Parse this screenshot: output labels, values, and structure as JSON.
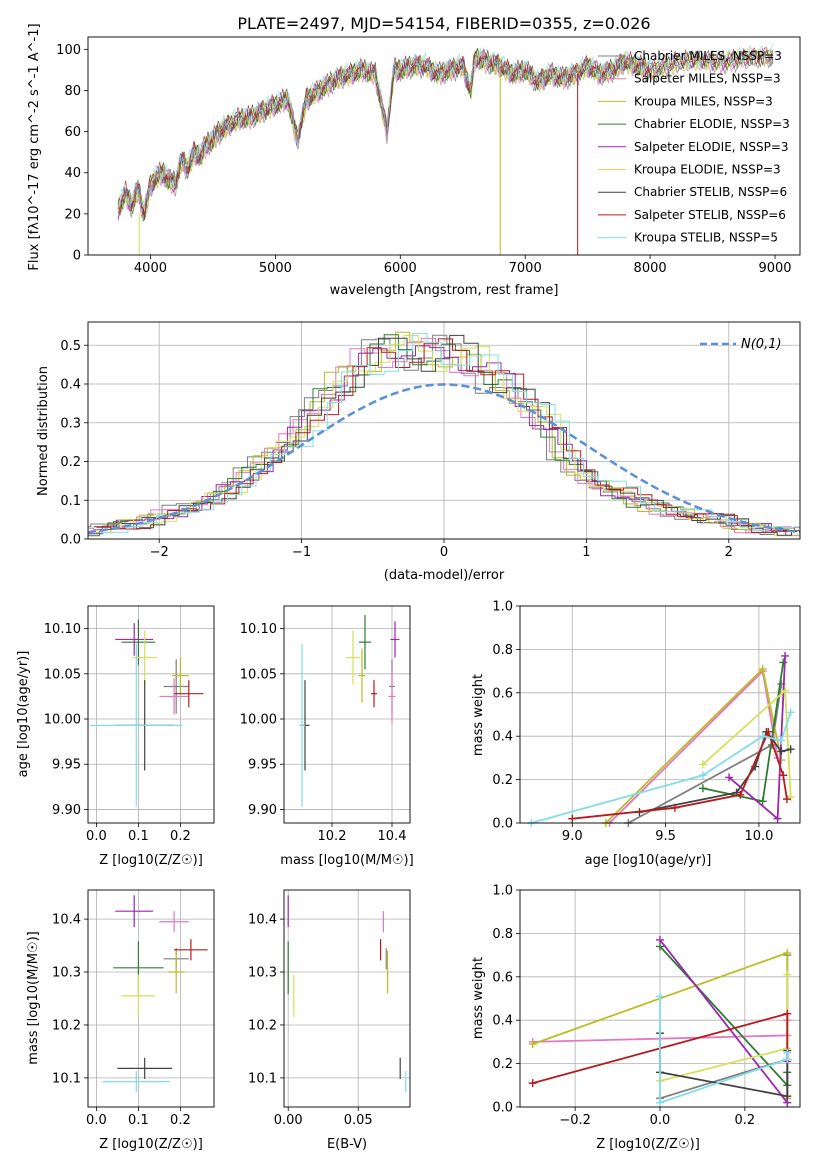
{
  "title": "PLATE=2497, MJD=54154, FIBERID=0355, z=0.026",
  "colors": {
    "grid": "#b0b0b0",
    "normal_curve": "#5b8fd6"
  },
  "labels": {
    "p1_xlabel": "wavelength [Angstrom, rest frame]",
    "p2_ylabel": "Normed distribution",
    "p2_xlabel": "(data-model)/error",
    "p2_legend": "N(0,1)",
    "p3_ylabel": "age  [log10(age/yr)]",
    "p3_xlabel": "Z [log10(Z/Z☉)]",
    "p4_xlabel": "mass [log10(M/M☉)]",
    "p5_ylabel": "mass weight",
    "p5_xlabel": "age  [log10(age/yr)]",
    "p6_ylabel": "mass [log10(M/M☉)]",
    "p6_xlabel": "Z [log10(Z/Z☉)]",
    "p7_xlabel": "E(B-V)",
    "p8_ylabel": "mass weight",
    "p8_xlabel": "Z [log10(Z/Z☉)]"
  },
  "chart_data": {
    "models": [
      {
        "name": "Chabrier MILES, NSSP=3",
        "color": "#7f7f7f"
      },
      {
        "name": "Salpeter MILES, NSSP=3",
        "color": "#e377c2"
      },
      {
        "name": "Kroupa MILES, NSSP=3",
        "color": "#bcbd22"
      },
      {
        "name": "Chabrier ELODIE, NSSP=3",
        "color": "#2e7d32"
      },
      {
        "name": "Salpeter ELODIE, NSSP=3",
        "color": "#9c27b0"
      },
      {
        "name": "Kroupa ELODIE, NSSP=3",
        "color": "#d4e157"
      },
      {
        "name": "Chabrier STELIB, NSSP=6",
        "color": "#424242"
      },
      {
        "name": "Salpeter STELIB, NSSP=6",
        "color": "#b71c1c"
      },
      {
        "name": "Kroupa STELIB, NSSP=5",
        "color": "#80deea"
      }
    ],
    "spectrum": {
      "type": "line",
      "xlim": [
        3500,
        9200
      ],
      "ylim": [
        0,
        106
      ],
      "xticks": [
        4000,
        5000,
        6000,
        7000,
        8000,
        9000
      ],
      "yticks": [
        0,
        20,
        40,
        60,
        80,
        100
      ],
      "ylabel": "Flux [fλ10^-17 erg cm^-2 s^-1 A^-1]",
      "wavelength": [
        3740,
        3800,
        3850,
        3900,
        3950,
        4000,
        4050,
        4100,
        4150,
        4200,
        4250,
        4300,
        4350,
        4400,
        4450,
        4500,
        4550,
        4600,
        4700,
        4800,
        4900,
        5000,
        5100,
        5175,
        5250,
        5300,
        5400,
        5500,
        5600,
        5700,
        5800,
        5893,
        5950,
        6000,
        6100,
        6200,
        6300,
        6400,
        6500,
        6563,
        6600,
        6700,
        6800,
        6900,
        7000,
        7100,
        7200,
        7300,
        7400,
        7500,
        7600,
        7700,
        7800,
        7900,
        8000,
        8200,
        8400,
        8600,
        8800,
        9000
      ],
      "flux": [
        22,
        30,
        24,
        32,
        20,
        34,
        38,
        40,
        36,
        35,
        46,
        42,
        50,
        48,
        54,
        56,
        60,
        62,
        66,
        67,
        70,
        73,
        76,
        56,
        76,
        78,
        82,
        86,
        88,
        90,
        88,
        60,
        90,
        90,
        92,
        92,
        88,
        90,
        92,
        80,
        96,
        94,
        92,
        88,
        90,
        84,
        88,
        86,
        88,
        92,
        88,
        90,
        94,
        92,
        90,
        93,
        95,
        94,
        96,
        97
      ]
    },
    "histogram": {
      "type": "bar",
      "xlim": [
        -2.5,
        2.5
      ],
      "ylim": [
        0,
        0.56
      ],
      "xticks": [
        -2,
        -1,
        0,
        1,
        2
      ],
      "yticks": [
        0.0,
        0.1,
        0.2,
        0.3,
        0.4,
        0.5
      ],
      "bin_width": 0.1,
      "bin_centers": [
        -2.45,
        -2.35,
        -2.25,
        -2.15,
        -2.05,
        -1.95,
        -1.85,
        -1.75,
        -1.65,
        -1.55,
        -1.45,
        -1.35,
        -1.25,
        -1.15,
        -1.05,
        -0.95,
        -0.85,
        -0.75,
        -0.65,
        -0.55,
        -0.45,
        -0.35,
        -0.25,
        -0.15,
        -0.05,
        0.05,
        0.15,
        0.25,
        0.35,
        0.45,
        0.55,
        0.65,
        0.75,
        0.85,
        0.95,
        1.05,
        1.15,
        1.25,
        1.35,
        1.45,
        1.55,
        1.65,
        1.75,
        1.85,
        1.95,
        2.05,
        2.15,
        2.25,
        2.35,
        2.45
      ],
      "base_values": [
        0.02,
        0.03,
        0.04,
        0.04,
        0.05,
        0.06,
        0.07,
        0.08,
        0.1,
        0.12,
        0.14,
        0.17,
        0.2,
        0.23,
        0.26,
        0.31,
        0.35,
        0.39,
        0.42,
        0.45,
        0.48,
        0.49,
        0.49,
        0.48,
        0.47,
        0.48,
        0.47,
        0.45,
        0.42,
        0.4,
        0.36,
        0.33,
        0.29,
        0.22,
        0.18,
        0.15,
        0.13,
        0.12,
        0.1,
        0.09,
        0.08,
        0.07,
        0.06,
        0.05,
        0.05,
        0.04,
        0.03,
        0.03,
        0.02,
        0.02
      ],
      "legend": "N(0,1)"
    },
    "age_vs_Z": {
      "type": "scatter",
      "xlim": [
        -0.02,
        0.28
      ],
      "ylim": [
        9.885,
        10.125
      ],
      "xticks": [
        0.0,
        0.1,
        0.2
      ],
      "yticks": [
        9.9,
        9.95,
        10.0,
        10.05,
        10.1
      ],
      "points": [
        {
          "x": 0.19,
          "y": 10.036,
          "xerr": 0.03,
          "yerr": 0.03
        },
        {
          "x": 0.185,
          "y": 10.025,
          "xerr": 0.035,
          "yerr": 0.02
        },
        {
          "x": 0.2,
          "y": 10.048,
          "xerr": 0.02,
          "yerr": 0.02
        },
        {
          "x": 0.1,
          "y": 10.085,
          "xerr": 0.04,
          "yerr": 0.025
        },
        {
          "x": 0.09,
          "y": 10.088,
          "xerr": 0.045,
          "yerr": 0.018
        },
        {
          "x": 0.115,
          "y": 10.068,
          "xerr": 0.03,
          "yerr": 0.03
        },
        {
          "x": 0.115,
          "y": 9.993,
          "xerr": 0.07,
          "yerr": 0.05
        },
        {
          "x": 0.22,
          "y": 10.028,
          "xerr": 0.035,
          "yerr": 0.015
        },
        {
          "x": 0.095,
          "y": 9.993,
          "xerr": 0.11,
          "yerr": 0.09
        }
      ]
    },
    "age_vs_mass": {
      "type": "scatter",
      "xlim": [
        10.04,
        10.46
      ],
      "ylim": [
        9.885,
        10.125
      ],
      "xticks": [
        10.2,
        10.4
      ],
      "yticks": [
        9.9,
        9.95,
        10.0,
        10.05,
        10.1
      ],
      "points": [
        {
          "x": 10.4,
          "y": 10.036,
          "xerr": 0.01,
          "yerr": 0.03
        },
        {
          "x": 10.4,
          "y": 10.025,
          "xerr": 0.012,
          "yerr": 0.03
        },
        {
          "x": 10.3,
          "y": 10.048,
          "xerr": 0.012,
          "yerr": 0.03
        },
        {
          "x": 10.31,
          "y": 10.085,
          "xerr": 0.02,
          "yerr": 0.03
        },
        {
          "x": 10.41,
          "y": 10.088,
          "xerr": 0.015,
          "yerr": 0.02
        },
        {
          "x": 10.27,
          "y": 10.068,
          "xerr": 0.025,
          "yerr": 0.03
        },
        {
          "x": 10.11,
          "y": 9.993,
          "xerr": 0.015,
          "yerr": 0.05
        },
        {
          "x": 10.34,
          "y": 10.028,
          "xerr": 0.01,
          "yerr": 0.015
        },
        {
          "x": 10.1,
          "y": 9.993,
          "xerr": 0.01,
          "yerr": 0.09
        }
      ]
    },
    "weight_vs_age": {
      "type": "line",
      "xlim": [
        8.72,
        10.22
      ],
      "ylim": [
        0,
        1.0
      ],
      "xticks": [
        9.0,
        9.5,
        10.0
      ],
      "yticks": [
        0.0,
        0.2,
        0.4,
        0.6,
        0.8,
        1.0
      ],
      "series": [
        {
          "x": [
            9.3,
            10.07,
            10.12
          ],
          "y": [
            0.0,
            0.36,
            0.64
          ]
        },
        {
          "x": [
            9.2,
            10.02,
            10.1
          ],
          "y": [
            0.0,
            0.7,
            0.3
          ]
        },
        {
          "x": [
            9.18,
            10.02,
            10.12
          ],
          "y": [
            0.0,
            0.71,
            0.29
          ]
        },
        {
          "x": [
            9.7,
            10.02,
            10.13
          ],
          "y": [
            0.16,
            0.1,
            0.74
          ]
        },
        {
          "x": [
            9.84,
            10.1,
            10.14
          ],
          "y": [
            0.21,
            0.02,
            0.77
          ]
        },
        {
          "x": [
            9.7,
            10.14,
            10.17
          ],
          "y": [
            0.27,
            0.61,
            0.12
          ]
        },
        {
          "x": [
            9.36,
            9.88,
            9.98,
            10.04,
            10.12,
            10.17
          ],
          "y": [
            0.05,
            0.14,
            0.26,
            0.42,
            0.33,
            0.34
          ]
        },
        {
          "x": [
            9.0,
            9.55,
            9.9,
            10.05,
            10.13,
            10.15
          ],
          "y": [
            0.02,
            0.07,
            0.13,
            0.42,
            0.22,
            0.11
          ]
        },
        {
          "x": [
            8.78,
            9.7,
            10.02,
            10.12,
            10.17
          ],
          "y": [
            0.0,
            0.22,
            0.4,
            0.38,
            0.51
          ]
        }
      ]
    },
    "mass_vs_Z": {
      "type": "scatter",
      "xlim": [
        -0.02,
        0.28
      ],
      "ylim": [
        10.045,
        10.455
      ],
      "xticks": [
        0.0,
        0.1,
        0.2
      ],
      "yticks": [
        10.1,
        10.2,
        10.3,
        10.4
      ],
      "points": [
        {
          "x": 0.19,
          "y": 10.325,
          "xerr": 0.03,
          "yerr": 0.02
        },
        {
          "x": 0.185,
          "y": 10.395,
          "xerr": 0.035,
          "yerr": 0.02
        },
        {
          "x": 0.19,
          "y": 10.3,
          "xerr": 0.02,
          "yerr": 0.04
        },
        {
          "x": 0.1,
          "y": 10.308,
          "xerr": 0.06,
          "yerr": 0.05
        },
        {
          "x": 0.09,
          "y": 10.415,
          "xerr": 0.045,
          "yerr": 0.03
        },
        {
          "x": 0.1,
          "y": 10.255,
          "xerr": 0.04,
          "yerr": 0.04
        },
        {
          "x": 0.115,
          "y": 10.118,
          "xerr": 0.065,
          "yerr": 0.02
        },
        {
          "x": 0.225,
          "y": 10.342,
          "xerr": 0.04,
          "yerr": 0.02
        },
        {
          "x": 0.095,
          "y": 10.093,
          "xerr": 0.08,
          "yerr": 0.02
        }
      ]
    },
    "mass_vs_EBV": {
      "type": "scatter",
      "xlim": [
        -0.003,
        0.087
      ],
      "ylim": [
        10.045,
        10.455
      ],
      "xticks": [
        0.0,
        0.05
      ],
      "yticks": [
        10.1,
        10.2,
        10.3,
        10.4
      ],
      "points": [
        {
          "x": 0.07,
          "y": 10.325,
          "xerr": 0,
          "yerr": 0.02
        },
        {
          "x": 0.068,
          "y": 10.395,
          "xerr": 0,
          "yerr": 0.02
        },
        {
          "x": 0.071,
          "y": 10.3,
          "xerr": 0,
          "yerr": 0.04
        },
        {
          "x": 0.0,
          "y": 10.308,
          "xerr": 0,
          "yerr": 0.05
        },
        {
          "x": 0.0,
          "y": 10.415,
          "xerr": 0,
          "yerr": 0.03
        },
        {
          "x": 0.004,
          "y": 10.255,
          "xerr": 0,
          "yerr": 0.04
        },
        {
          "x": 0.08,
          "y": 10.118,
          "xerr": 0,
          "yerr": 0.02
        },
        {
          "x": 0.066,
          "y": 10.342,
          "xerr": 0,
          "yerr": 0.02
        },
        {
          "x": 0.084,
          "y": 10.093,
          "xerr": 0,
          "yerr": 0.02
        }
      ]
    },
    "weight_vs_Z": {
      "type": "line",
      "xlim": [
        -0.33,
        0.33
      ],
      "ylim": [
        0,
        1.0
      ],
      "xticks": [
        -0.2,
        0.0,
        0.2
      ],
      "yticks": [
        0.0,
        0.2,
        0.4,
        0.6,
        0.8,
        1.0
      ],
      "series": [
        {
          "x": [
            0.0,
            0.3,
            0.3
          ],
          "y": [
            0.04,
            0.22,
            0.7
          ]
        },
        {
          "x": [
            -0.3,
            0.3,
            0.3
          ],
          "y": [
            0.3,
            0.33,
            0.4
          ]
        },
        {
          "x": [
            -0.3,
            0.3,
            0.3
          ],
          "y": [
            0.29,
            0.71,
            0.04
          ]
        },
        {
          "x": [
            0.0,
            0.3,
            0.3
          ],
          "y": [
            0.74,
            0.1,
            0.16
          ]
        },
        {
          "x": [
            0.0,
            0.3,
            0.3
          ],
          "y": [
            0.77,
            0.02,
            0.21
          ]
        },
        {
          "x": [
            0.0,
            0.3,
            0.3
          ],
          "y": [
            0.12,
            0.27,
            0.61
          ]
        },
        {
          "x": [
            0.0,
            0.0,
            0.3,
            0.3
          ],
          "y": [
            0.34,
            0.16,
            0.05,
            0.26
          ]
        },
        {
          "x": [
            -0.3,
            0.3,
            0.3
          ],
          "y": [
            0.11,
            0.43,
            0.22
          ]
        },
        {
          "x": [
            0.0,
            0.0,
            0.3,
            0.3
          ],
          "y": [
            0.51,
            0.02,
            0.22,
            0.25
          ]
        }
      ]
    }
  }
}
